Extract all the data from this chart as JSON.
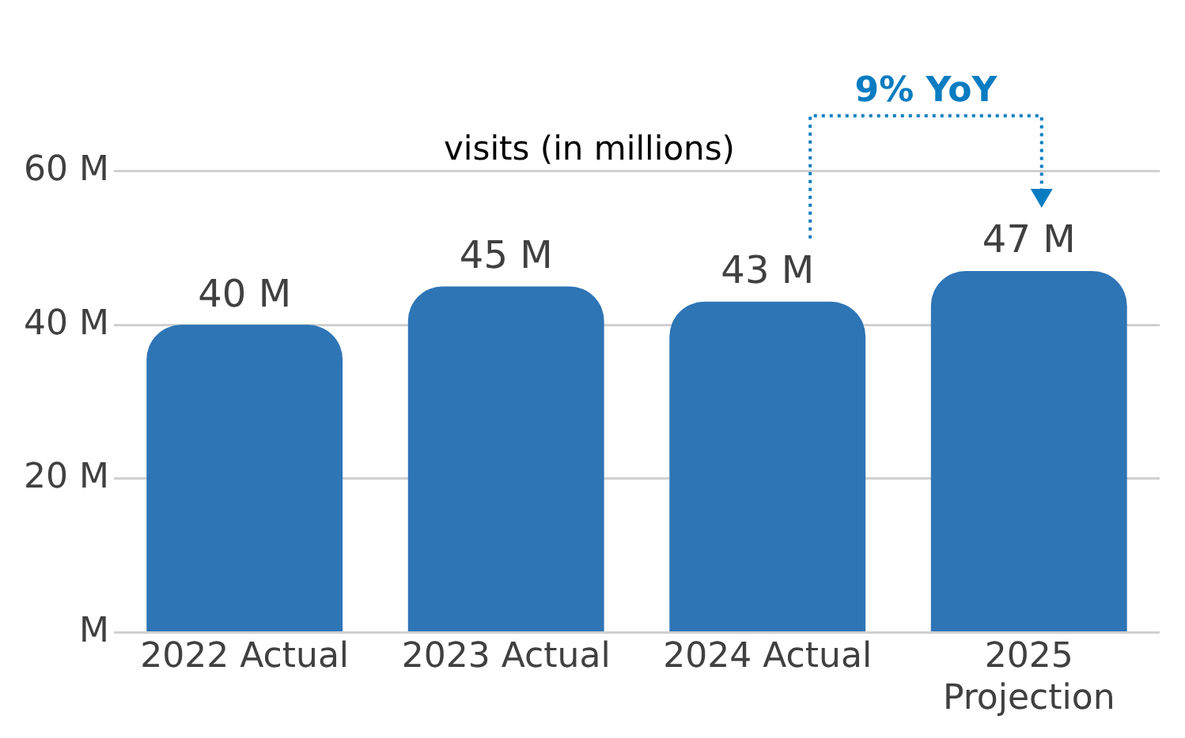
{
  "chart_data": {
    "type": "bar",
    "title": "visits (in millions)",
    "categories": [
      "2022 Actual",
      "2023 Actual",
      "2024 Actual",
      "2025 Projection"
    ],
    "values": [
      40,
      45,
      43,
      47
    ],
    "value_labels": [
      "40 M",
      "45 M",
      "43 M",
      "47 M"
    ],
    "color": "#2e75b6",
    "ylim": [
      0,
      60
    ],
    "yticks": [
      {
        "value": 0,
        "label": "M"
      },
      {
        "value": 20,
        "label": "20 M"
      },
      {
        "value": 40,
        "label": "40 M"
      },
      {
        "value": 60,
        "label": "60 M"
      }
    ],
    "grid": "y",
    "annotations": [
      "9% YoY"
    ]
  }
}
